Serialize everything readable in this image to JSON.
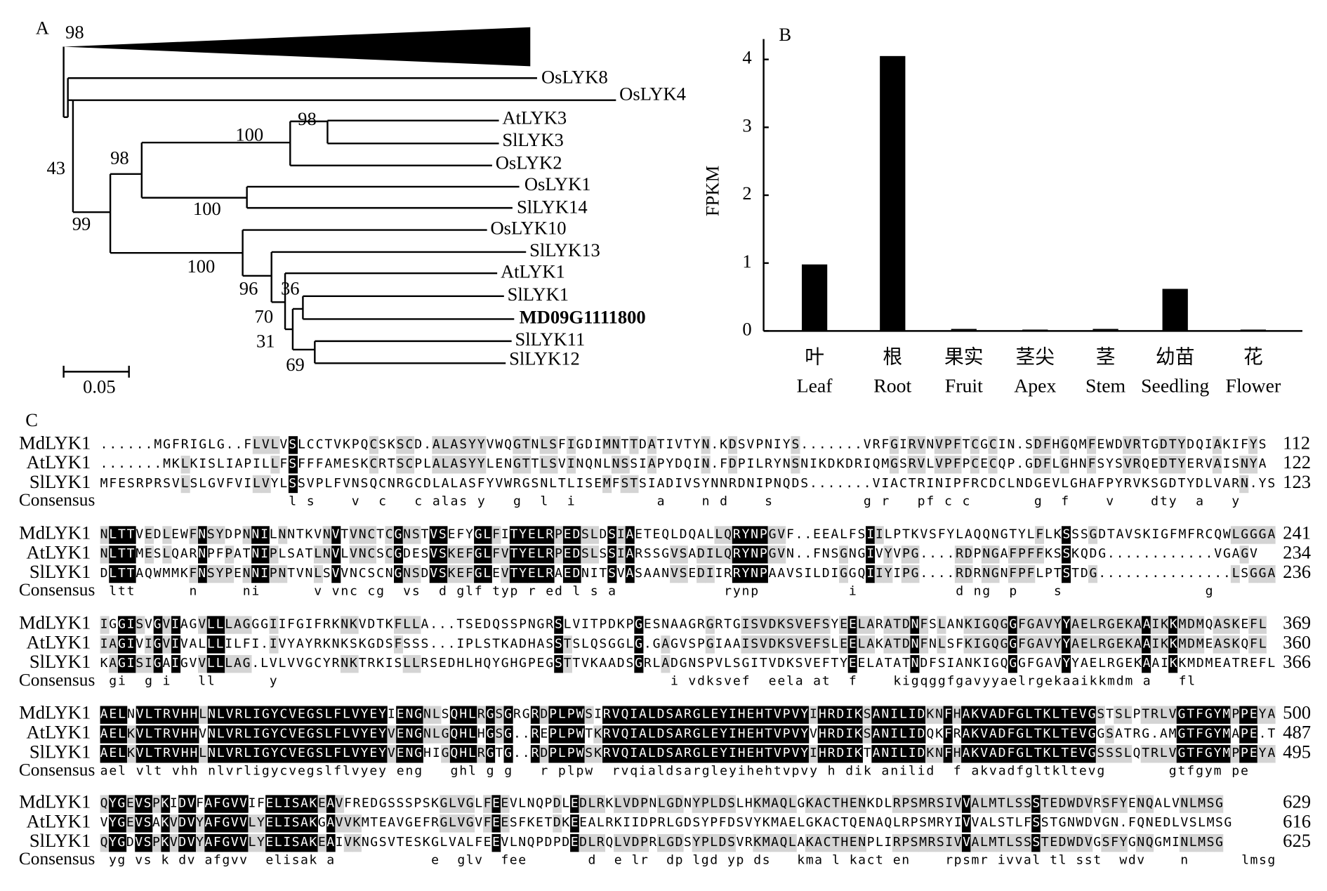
{
  "panel_labels": [
    "A",
    "B",
    "C"
  ],
  "tree": {
    "leaves": [
      "OsLYK8",
      "OsLYK4",
      "AtLYK3",
      "SlLYK3",
      "OsLYK2",
      "OsLYK1",
      "SlLYK14",
      "OsLYK10",
      "SlLYK13",
      "AtLYK1",
      "SlLYK1",
      "MD09G1111800",
      "SlLYK11",
      "SlLYK12"
    ],
    "bootstrap": [
      98,
      43,
      99,
      98,
      100,
      98,
      100,
      100,
      96,
      36,
      70,
      31,
      69
    ],
    "scale_label": "0.05"
  },
  "chart_data": {
    "type": "bar",
    "ylabel": "FPKM",
    "categories": [
      "Leaf",
      "Root",
      "Fruit",
      "Apex",
      "Stem",
      "Seedling",
      "Flower"
    ],
    "categories_zh": [
      "叶",
      "根",
      "果实",
      "茎尖",
      "茎",
      "幼苗",
      "花"
    ],
    "values": [
      0.98,
      4.05,
      0.03,
      0.02,
      0.03,
      0.62,
      0.02
    ],
    "color": "#000000",
    "ylim": [
      0,
      4.3
    ],
    "yticks": [
      0,
      1,
      2,
      3,
      4
    ]
  },
  "alignment": {
    "blocks": [
      {
        "rows": [
          {
            "name": "MdLYK1",
            "seq": "......MGFRIGLG..FLVLVSLCCTVKPQCSKSCD.ALASYYVWQGTNLSFIGDIMNTTDATIVTYN.KDSVPNIYS.......VRFGIRVNVPFTCGCIN.SDFHGQMFEWDVRTGDTYDQIAKIFYS",
            "end": 112
          },
          {
            "name": "AtLYK1",
            "seq": ".......MKLKISLIAPILLFSFFFAMESKCRTSCPLALASYYLENGTTLSVINQNLNSSIAPYDQIN.FDPILRYNSNIKDKDRIQMGSRVLVPFPCECQP.GDFLGHNFSYSVRQEDTYERVAISNYA",
            "end": 122
          },
          {
            "name": "SlLYK1",
            "seq": "MFESRPRSVLSLGVFVILVYLSSVPLFVNSQCNRGCDLALASFYVWRGSNLTLISEMFSTSIADIVSYNNRDNIPNQDS.......VIACTRINIPFRCDCLNDGEVLGHAFPYRVKSGDTYDLVARN.YS",
            "end": 123
          }
        ],
        "consensus_name": "Consensus",
        "consensus": "                     l s    v  c   c alas y   g  l  i         a    n d    s          g r   pf c c       g  f    v    dty  a   y"
      },
      {
        "rows": [
          {
            "name": "MdLYK1",
            "seq": "NLTTVEDLEWFNSYDPNNILNNTKVNVTVNCTCGNSTVSEFYGLFITYELRPEDSLDSIAETEQLDQALLQRYNPGVF..EEALFSIILPTKVSFYLAQQNGTYLFLKSSSGDTAVSKIGFMFRCQWLGGGA",
            "end": 241
          },
          {
            "name": "AtLYK1",
            "seq": "NLTTMESLQARNPFPATNIPLSATLNVLVNCSCGDESVSKEFGLFVTYELRPEDSLSSIARSSGVSADILQRYNPGVN..FNSGNGIVYVPG....RDPNGAFPFFKSSKQDG............VGAGV",
            "end": 234
          },
          {
            "name": "SlLYK1",
            "seq": "DLTTAQWMMKFNSYPENNIPNTVNLSVVNCSCNGNSDVSKEFGLEVTYELRAEDNITSVASAANVSEDIIRRYNPAAVSILDIGGQIIYIPG....RDRNGNFPFLPTSTDG...............LSGGA",
            "end": 236
          }
        ],
        "consensus_name": "Consensus",
        "consensus": " ltt      n     ni      v vnc cg  vs  d glf typ r ed l s a            rynp          i           d ng  p    s                g"
      },
      {
        "rows": [
          {
            "name": "MdLYK1",
            "seq": "IGGISVGVIAGVLLLAGGGIIFGIFRKNKVDTKFLLA...TSEDQSSPNGRSLVITPDKPGESNAAGRGRTGISVDKSVEFSYEELARATDNFSLANKIGQGGFGAVYYAELRGEKAAIKKMDMQASKEFL",
            "end": 369
          },
          {
            "name": "AtLYK1",
            "seq": "IAGIVIGVIVALLLILFI.IVYAYRKNKSKGDSFSSS...IPLSTKADHASSTSLQSGGLG.GAGVSPGIAAISVDKSVEFSLEELAKATDNFNLSFKIGQGGFGAVYYAELRGEKAAIKKMDMEASKQFL",
            "end": 360
          },
          {
            "name": "SlLYK1",
            "seq": "KAGISIGAIGVVLLLAG.LVLVVGCYRNKTRKISLLRSEDHLHQYGHGPEGSTTVKAADSGRLADGNSPVLSGITVDKSVEFTYEELATATNDFSIANKIGQGGFGAVYYAELRGEKAAIKKMDMEATREFL",
            "end": 366
          }
        ],
        "consensus_name": "Consensus",
        "consensus": " gi  g i   ll      y                                            i vdksvef  eela at  f    kigqggfgavyyaelrgekaaikkmdm a   fl"
      },
      {
        "rows": [
          {
            "name": "MdLYK1",
            "seq": "AELNVLTRVHHLNLVRLIGYCVEGSLFLVYEYIENGNLSQHLRGSGRGRDPLPWSIRVQIALDSARGLEYIHEHTVPVYIHRDIKSANILIDKNFHAKVADFGLTKLTEVGSTSLPTRLVGTFGYMPPEYA",
            "end": 500
          },
          {
            "name": "AtLYK1",
            "seq": "AELKVLTRVHHVNLVRLIGYCVEGSLFLVYEYVENGNLGQHLHGSG..REPLPWTKRVQIALDSARGLEYIHEHTVPVYVHRDIKSANILIDQKFRAKVADFGLTKLTEVGGSATRG.AMGTFGYMAPE.T",
            "end": 487
          },
          {
            "name": "SlLYK1",
            "seq": "AELKVLTRVHHLNLVRLIGYCVEGSLFLVYEYVENGHIGQHLRGTG..RDPLPWSKRVQIALDSARGLEYIHEHTVPVYIHRDIKTANILIDKNFHAKVADFGLTKLTEVGSSSLQTRLVGTFGYMPPEYA",
            "end": 495
          }
        ],
        "consensus_name": "Consensus",
        "consensus": "ael vlt vhh nlvrligycvegslflvyey eng   ghl g g   r plpw  rvqialdsargleyihehtvpvy h dik anilid  f akvadfgltkltevg       gtfgym pe"
      },
      {
        "rows": [
          {
            "name": "MdLYK1",
            "seq": "QYGEVSPKIDVFAFGVVIFELISAKEAVFREDGSSSPSKGLVGLFEEVLNQPDLEDLRKLVDPNLGDNYPLDSLHKMAQLGKACTHENKDLRPSMRSIVVALMTLSSSTEDWDVRSFYENQALVNLMSG",
            "end": 629
          },
          {
            "name": "AtLYK1",
            "seq": "VYGEVSAKVDVYAFGVVLYELISAKGAVVKMTEAVGEFRGLVGVFEESFKETDKEEALRKIIDPRLGDSYPFDSVYKMAELGKACTQENAQLRPSMRYIVVALSTLFSSTGNWDVGN.FQNEDLVSLMSG",
            "end": 616
          },
          {
            "name": "SlLYK1",
            "seq": "QYGDVSPKVDVYAFGVVLYELISAKEAIVKNGSVTESKGLVALFEEVLNQPDPDEDLRQLVDPRLGDSYPLDSVRKMAQLAKACTHENPLIRPSMRSIVVALMTLSSSTEDWDVGSFYGNQGMINLMSG",
            "end": 625
          }
        ],
        "consensus_name": "Consensus",
        "consensus": " yg vs k dv afgvv  elisak a           e  glv  fee       d  e lr  dp lgd yp ds   kma l kact en    rpsmr ivval tl sst  wdv    n      lmsg"
      }
    ]
  }
}
